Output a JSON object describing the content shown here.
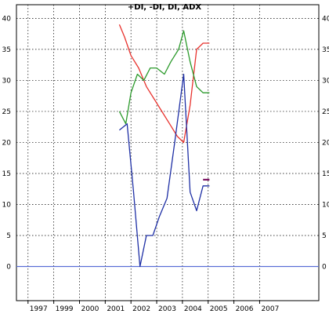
{
  "chart_data": {
    "type": "line",
    "title": "+DI, -DI, DI, ADX",
    "xlabel": "",
    "ylabel": "",
    "xlim": [
      1996.55,
      2008.3
    ],
    "ylim": [
      -5.5,
      42.2
    ],
    "yticks": [
      0,
      5,
      10,
      15,
      20,
      25,
      30,
      35,
      40
    ],
    "xticks": [
      "1997",
      "1999",
      "2000",
      "2001",
      "2002",
      "2003",
      "2004",
      "2005",
      "2006",
      "2007"
    ],
    "xtick_positions": [
      1997,
      1998,
      1999,
      2000,
      2001,
      2002,
      2003,
      2004,
      2005,
      2006
    ],
    "grid": true,
    "legend": "none",
    "reference_line": {
      "y": 0,
      "color": "#5b6fd6"
    },
    "series": [
      {
        "color": "#e8322d",
        "points": [
          [
            2000.55,
            39
          ],
          [
            2000.75,
            37
          ],
          [
            2001.0,
            34
          ],
          [
            2001.3,
            32
          ],
          [
            2001.6,
            29
          ],
          [
            2001.9,
            27
          ],
          [
            2002.2,
            25
          ],
          [
            2002.5,
            23
          ],
          [
            2002.8,
            21
          ],
          [
            2003.05,
            20
          ],
          [
            2003.3,
            26
          ],
          [
            2003.55,
            35
          ],
          [
            2003.8,
            36
          ],
          [
            2004.05,
            36
          ]
        ]
      },
      {
        "color": "#2b9a2b",
        "points": [
          [
            2000.55,
            25
          ],
          [
            2000.8,
            23
          ],
          [
            2001.0,
            28
          ],
          [
            2001.25,
            31
          ],
          [
            2001.5,
            30
          ],
          [
            2001.75,
            32
          ],
          [
            2002.0,
            32
          ],
          [
            2002.3,
            31
          ],
          [
            2002.55,
            33
          ],
          [
            2002.85,
            35
          ],
          [
            2003.05,
            38
          ],
          [
            2003.3,
            33
          ],
          [
            2003.55,
            29
          ],
          [
            2003.8,
            28
          ],
          [
            2004.05,
            28
          ]
        ]
      },
      {
        "color": "#1e2fa5",
        "points": [
          [
            2000.55,
            22
          ],
          [
            2000.85,
            23
          ],
          [
            2001.1,
            12
          ],
          [
            2001.35,
            0
          ],
          [
            2001.6,
            5
          ],
          [
            2001.85,
            5
          ],
          [
            2002.1,
            8
          ],
          [
            2002.4,
            11
          ],
          [
            2002.7,
            20
          ],
          [
            2003.05,
            31
          ],
          [
            2003.3,
            12
          ],
          [
            2003.55,
            9
          ],
          [
            2003.8,
            13
          ],
          [
            2004.05,
            13
          ]
        ]
      },
      {
        "color": "#7a1060",
        "points": [
          [
            2003.8,
            14
          ],
          [
            2004.05,
            14
          ]
        ]
      }
    ]
  }
}
